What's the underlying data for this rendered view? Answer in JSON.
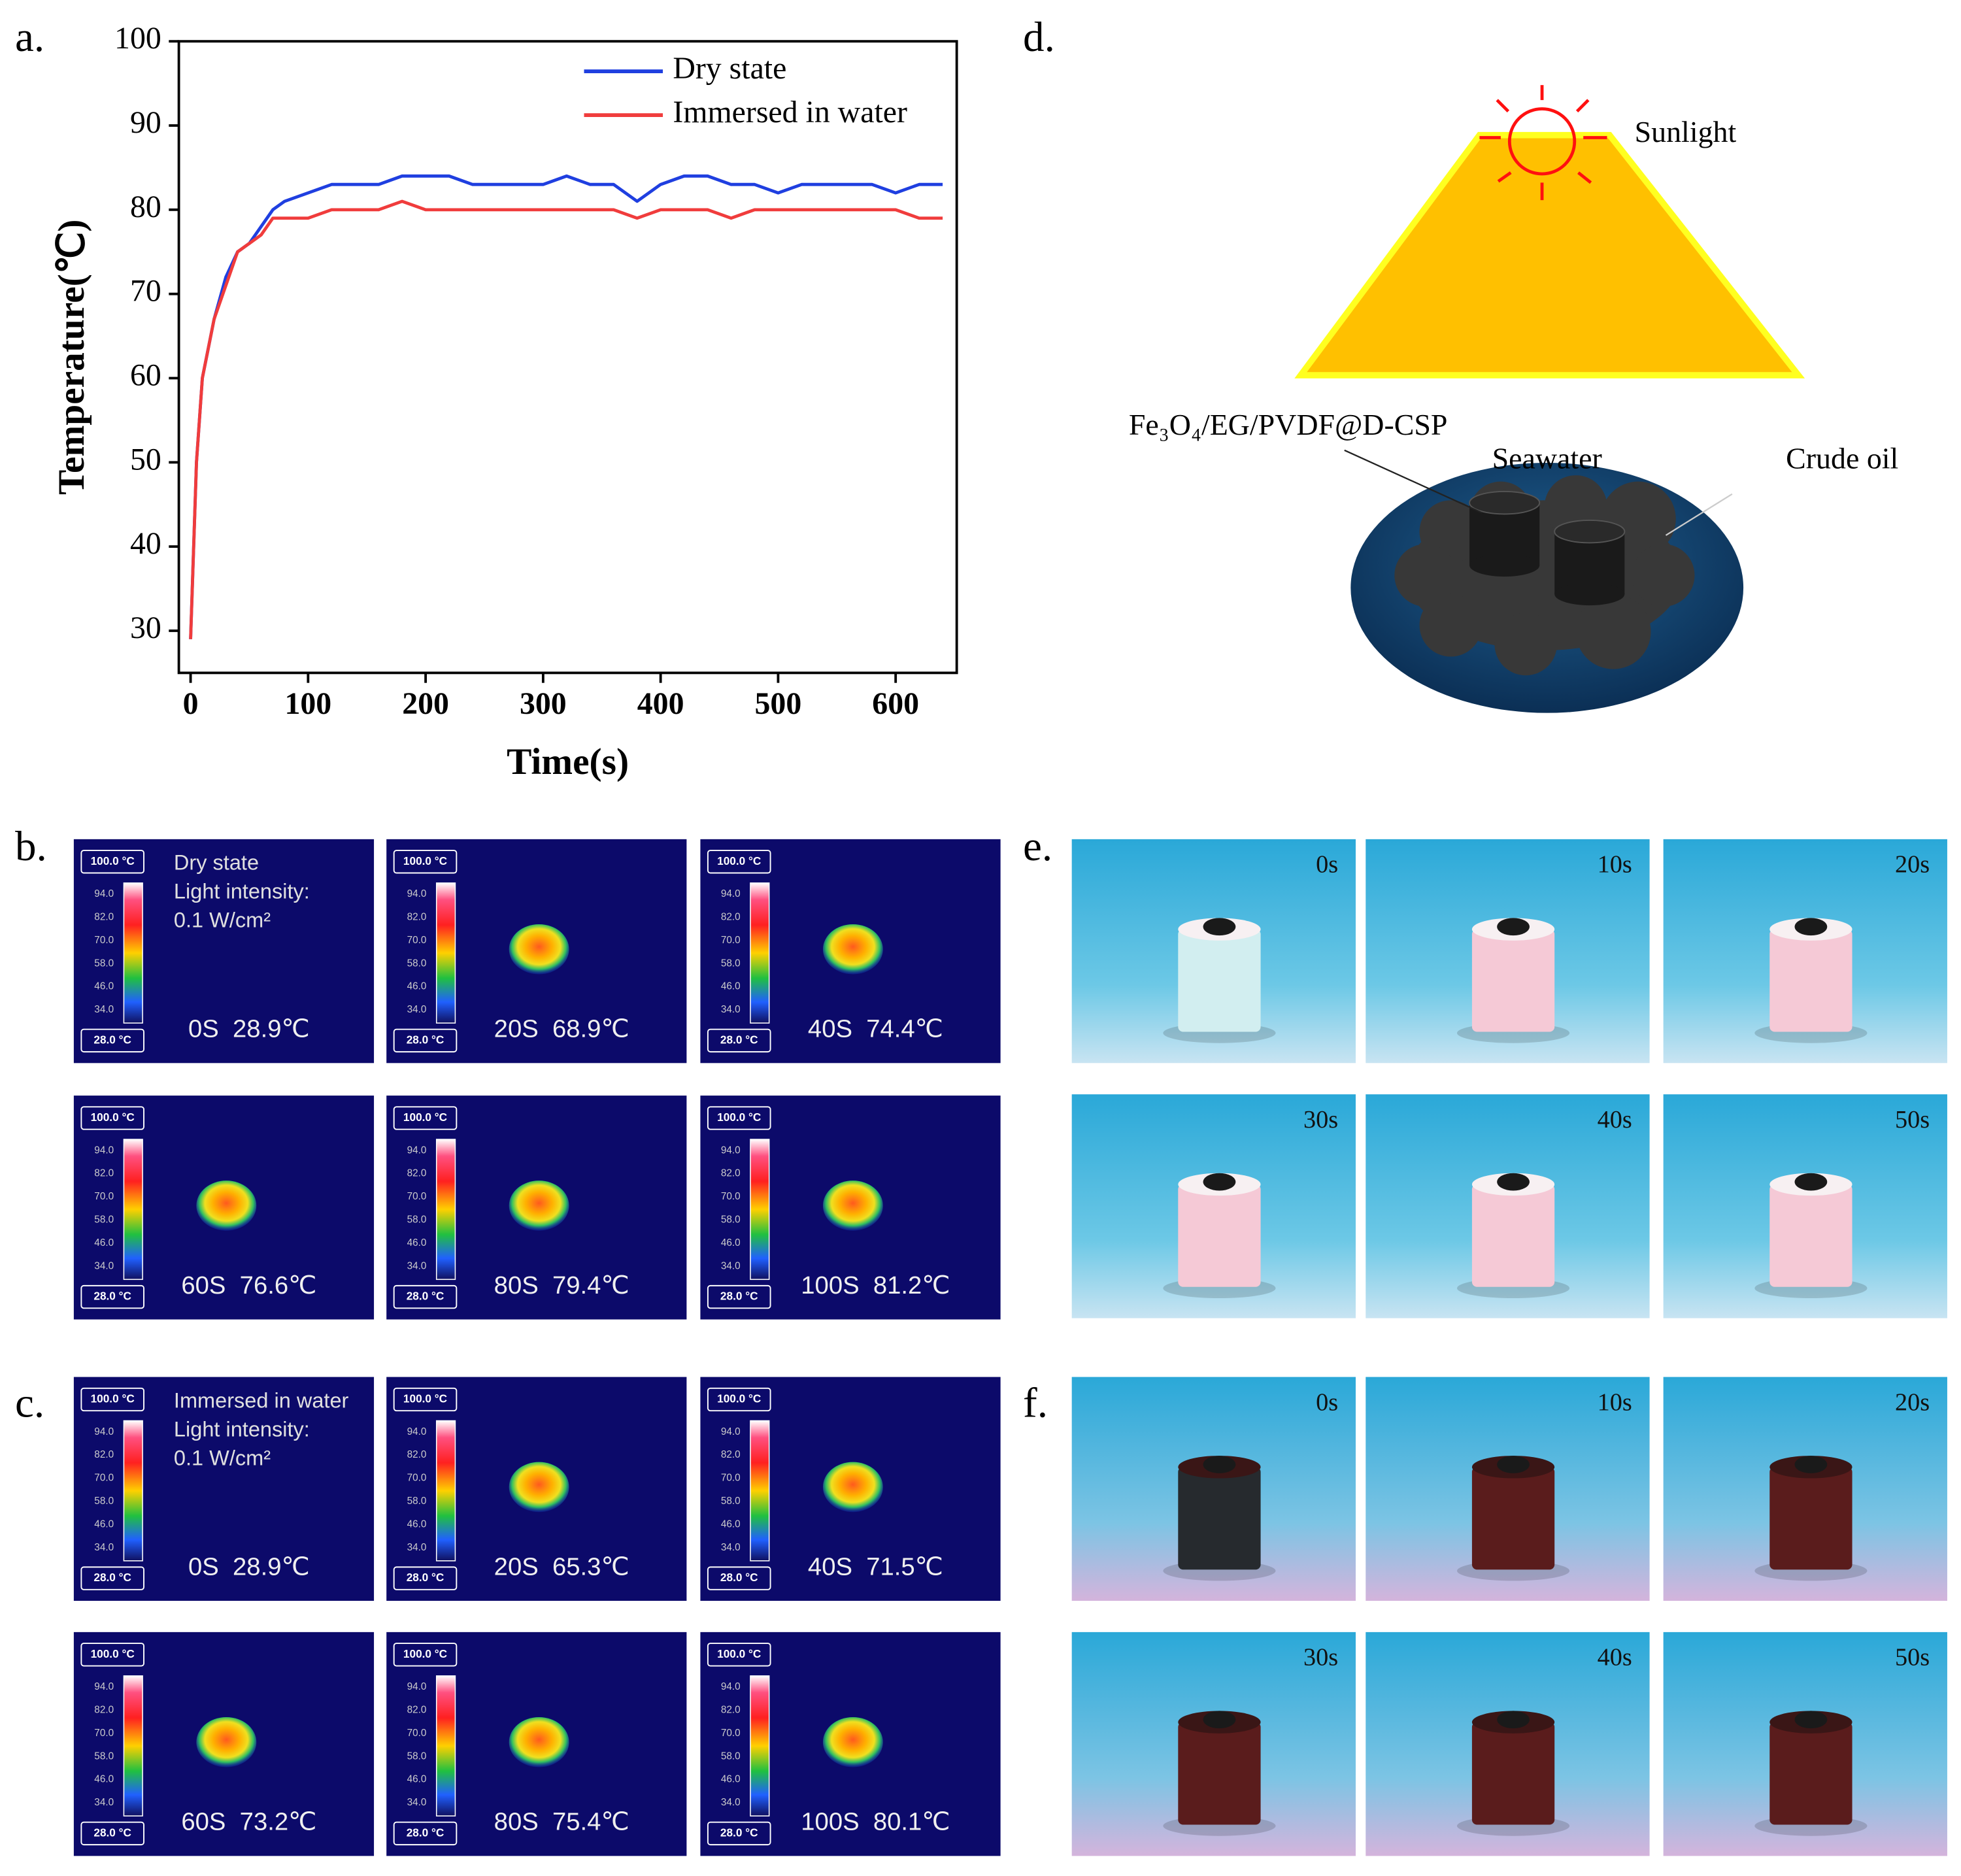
{
  "panel_labels": [
    "a.",
    "b.",
    "c.",
    "d.",
    "e.",
    "f."
  ],
  "chart_data": {
    "type": "line",
    "x_label": "Time(s)",
    "y_label": "Temperature(℃)",
    "x": [
      0,
      5,
      10,
      20,
      30,
      40,
      50,
      60,
      70,
      80,
      100,
      120,
      140,
      160,
      180,
      200,
      220,
      240,
      260,
      280,
      300,
      320,
      340,
      360,
      380,
      400,
      420,
      440,
      460,
      480,
      500,
      520,
      540,
      560,
      580,
      600,
      620,
      640
    ],
    "series": [
      {
        "name": "Dry state",
        "color": "#1f3fe0",
        "values": [
          29,
          50,
          60,
          67,
          72,
          75,
          76,
          78,
          80,
          81,
          82,
          83,
          83,
          83,
          84,
          84,
          84,
          83,
          83,
          83,
          83,
          84,
          83,
          83,
          81,
          83,
          84,
          84,
          83,
          83,
          82,
          83,
          83,
          83,
          83,
          82,
          83,
          83
        ]
      },
      {
        "name": "Immersed in water",
        "color": "#f03c3c",
        "values": [
          29,
          50,
          60,
          67,
          71,
          75,
          76,
          77,
          79,
          79,
          79,
          80,
          80,
          80,
          81,
          80,
          80,
          80,
          80,
          80,
          80,
          80,
          80,
          80,
          79,
          80,
          80,
          80,
          79,
          80,
          80,
          80,
          80,
          80,
          80,
          80,
          79,
          79
        ]
      }
    ],
    "xlim": [
      -10,
      652
    ],
    "ylim": [
      25,
      100
    ],
    "xticks": [
      0,
      100,
      200,
      300,
      400,
      500,
      600
    ],
    "yticks": [
      30,
      40,
      50,
      60,
      70,
      80,
      90,
      100
    ],
    "legend": "upper right"
  },
  "thermal_scale": {
    "top": "100.0 °C",
    "ticks": [
      "94.0",
      "82.0",
      "70.0",
      "58.0",
      "46.0",
      "34.0"
    ],
    "bottom": "28.0 °C"
  },
  "thermal_b": {
    "note": [
      "Dry state",
      "Light intensity:",
      "0.1 W/cm²"
    ],
    "captions": [
      "0S  28.9℃",
      "20S  68.9℃",
      "40S  74.4℃",
      "60S  76.6℃",
      "80S  79.4℃",
      "100S  81.2℃"
    ]
  },
  "thermal_c": {
    "note": [
      "Immersed in water",
      "Light intensity:",
      "0.1 W/cm²"
    ],
    "captions": [
      "0S  28.9℃",
      "20S  65.3℃",
      "40S  71.5℃",
      "60S  73.2℃",
      "80S  75.4℃",
      "100S  80.1℃"
    ]
  },
  "diagram": {
    "sunlight": "Sunlight",
    "material": "Fe₃O₄/EG/PVDF@D-CSP",
    "seawater": "Seawater",
    "crude_oil": "Crude oil"
  },
  "photos_e": {
    "times": [
      "0s",
      "10s",
      "20s",
      "30s",
      "40s",
      "50s"
    ]
  },
  "photos_f": {
    "times": [
      "0s",
      "10s",
      "20s",
      "30s",
      "40s",
      "50s"
    ]
  }
}
